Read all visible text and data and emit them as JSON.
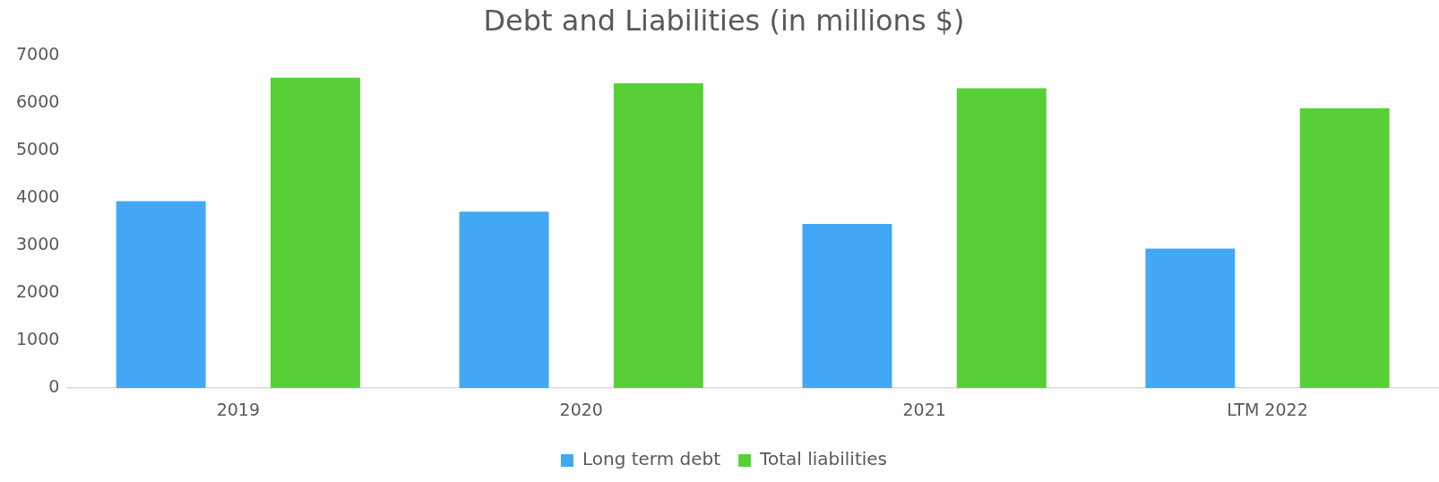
{
  "chart_data": {
    "type": "bar",
    "title": "Debt and Liabilities (in millions $)",
    "categories": [
      "2019",
      "2020",
      "2021",
      "LTM 2022"
    ],
    "series": [
      {
        "name": "Long term debt",
        "color": "#42a8f5",
        "values": [
          3940,
          3720,
          3460,
          2940
        ]
      },
      {
        "name": "Total liabilities",
        "color": "#56d036",
        "values": [
          6540,
          6420,
          6320,
          5900
        ]
      }
    ],
    "ylim": [
      0,
      7000
    ],
    "yticks": [
      0,
      1000,
      2000,
      3000,
      4000,
      5000,
      6000,
      7000
    ],
    "grid": false,
    "legend": "bottom"
  }
}
